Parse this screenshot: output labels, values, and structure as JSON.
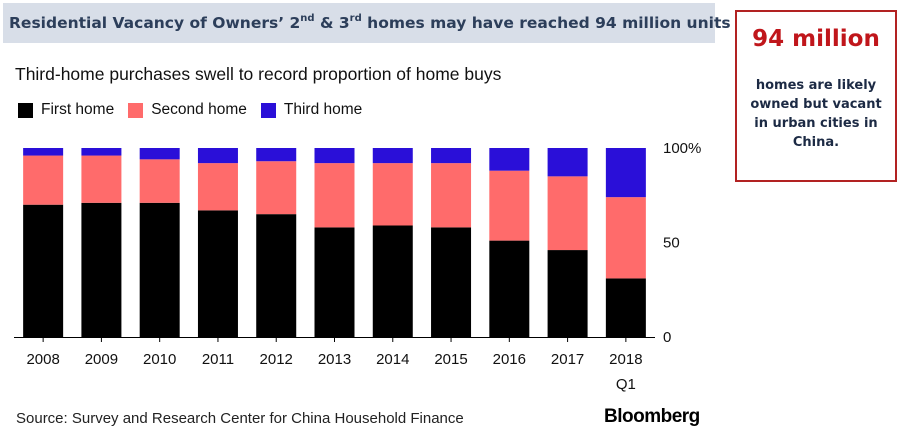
{
  "banner": {
    "part1": "Residential Vacancy of Owners’ 2",
    "sup1": "nd",
    "part2": " & 3",
    "sup2": "rd",
    "part3": " homes may have reached 94 million units"
  },
  "callout": {
    "headline": "94 million",
    "body": "homes are likely owned but vacant in urban cities in China."
  },
  "source": "Source: Survey and Research Center for China Household Finance",
  "brand": "Bloomberg",
  "colors": {
    "first_home": "#000000",
    "second_home": "#ff6b6b",
    "third_home": "#2a0fd8",
    "banner_bg": "#d8dee8",
    "callout_border": "#b22222"
  },
  "chart_data": {
    "type": "bar",
    "stacked": true,
    "title": "Third-home purchases swell to record proportion of home buys",
    "categories": [
      "2008",
      "2009",
      "2010",
      "2011",
      "2012",
      "2013",
      "2014",
      "2015",
      "2016",
      "2017",
      "2018"
    ],
    "category_sublabels": [
      "",
      "",
      "",
      "",
      "",
      "",
      "",
      "",
      "",
      "",
      "Q1"
    ],
    "series": [
      {
        "name": "First home",
        "color": "#000000",
        "values": [
          70,
          71,
          71,
          67,
          65,
          58,
          59,
          58,
          51,
          46,
          31
        ]
      },
      {
        "name": "Second home",
        "color": "#ff6b6b",
        "values": [
          26,
          25,
          23,
          25,
          28,
          34,
          33,
          34,
          37,
          39,
          43
        ]
      },
      {
        "name": "Third home",
        "color": "#2a0fd8",
        "values": [
          4,
          4,
          6,
          8,
          7,
          8,
          8,
          8,
          12,
          15,
          26
        ]
      }
    ],
    "ylim": [
      0,
      100
    ],
    "yticks": [
      "0",
      "50",
      "100%"
    ],
    "ytick_values": [
      0,
      50,
      100
    ],
    "legend_position": "top-left",
    "grid": false
  }
}
